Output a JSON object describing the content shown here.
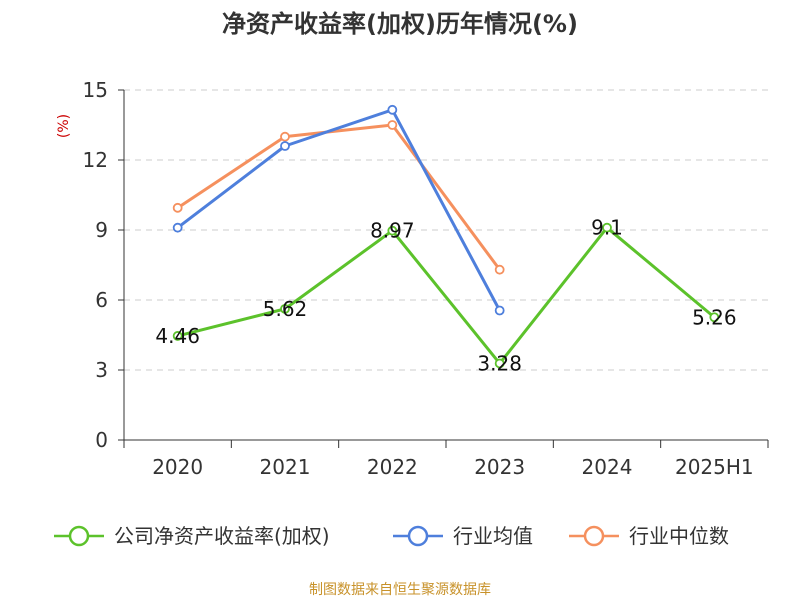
{
  "chart_data": {
    "type": "line",
    "title": "净资产收益率(加权)历年情况(%)",
    "ylabel": "(%)",
    "categories": [
      "2020",
      "2021",
      "2022",
      "2023",
      "2024",
      "2025H1"
    ],
    "ylim": [
      0,
      15
    ],
    "yticks": [
      0,
      3,
      6,
      9,
      12,
      15
    ],
    "grid": true,
    "legend_position": "bottom",
    "series": [
      {
        "name": "公司净资产收益率(加权)",
        "color": "#5cc22b",
        "values": [
          4.46,
          5.62,
          8.97,
          3.28,
          9.1,
          5.26
        ],
        "labels": [
          "4.46",
          "5.62",
          "8.97",
          "3.28",
          "9.1",
          "5.26"
        ]
      },
      {
        "name": "行业均值",
        "color": "#4e7fdc",
        "values": [
          9.1,
          12.6,
          14.15,
          5.55,
          null,
          null
        ]
      },
      {
        "name": "行业中位数",
        "color": "#f5905e",
        "values": [
          9.95,
          13.0,
          13.5,
          7.3,
          null,
          null
        ]
      }
    ]
  },
  "source_text": "制图数据来自恒生聚源数据库"
}
